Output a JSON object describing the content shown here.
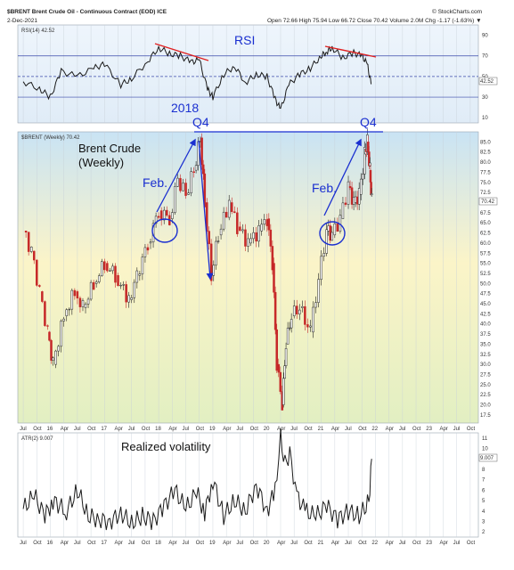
{
  "header": {
    "title": "$BRENT Brent Crude Oil - Continuous Contract (EOD) ICE",
    "date": "2-Dec-2021",
    "stats": "Open 72.66  High 75.94  Low 66.72  Close 70.42  Volume 2.0M  Chg -1.17 (-1.63%) ▼",
    "brand": "© StockCharts.com"
  },
  "annotations": {
    "rsi": "RSI",
    "year2018": "2018",
    "q4_left": "Q4",
    "q4_right": "Q4",
    "brent_line1": "Brent Crude",
    "brent_line2": "(Weekly)",
    "feb_left": "Feb.",
    "feb_right": "Feb.",
    "realized_volatility": "Realized volatility"
  },
  "chart_data": [
    {
      "type": "line",
      "panel": "rsi",
      "legend": "RSI(14) 42.52",
      "last_value": "42.52",
      "ylim": [
        5,
        100
      ],
      "yticks": [
        10,
        30,
        50,
        70,
        90
      ],
      "reference_lines": [
        30,
        50,
        70
      ],
      "x": [
        2015.5,
        2015.8,
        2016.0,
        2016.2,
        2016.5,
        2016.8,
        2017.0,
        2017.3,
        2017.5,
        2017.8,
        2018.0,
        2018.2,
        2018.4,
        2018.6,
        2018.75,
        2018.9,
        2019.0,
        2019.2,
        2019.4,
        2019.6,
        2019.8,
        2020.0,
        2020.15,
        2020.25,
        2020.4,
        2020.6,
        2020.8,
        2021.0,
        2021.1,
        2021.2,
        2021.4,
        2021.6,
        2021.75,
        2021.85,
        2021.92
      ],
      "values": [
        45,
        38,
        30,
        55,
        50,
        58,
        62,
        42,
        48,
        65,
        78,
        72,
        70,
        64,
        66,
        38,
        30,
        52,
        60,
        44,
        52,
        50,
        28,
        18,
        42,
        52,
        58,
        70,
        74,
        78,
        68,
        73,
        70,
        62,
        42.52
      ]
    },
    {
      "type": "candlestick",
      "panel": "price",
      "legend": "$BRENT (Weekly) 70.42",
      "last_value": "70.42",
      "ylim": [
        15.5,
        87.5
      ],
      "yticks": [
        17.5,
        20.0,
        22.5,
        25.0,
        27.5,
        30.0,
        32.5,
        35.0,
        37.5,
        40.0,
        42.5,
        45.0,
        47.5,
        50.0,
        52.5,
        55.0,
        57.5,
        60.0,
        62.5,
        65.0,
        67.5,
        70.0,
        72.5,
        75.0,
        77.5,
        80.0,
        82.5,
        85.0
      ],
      "x": [
        2015.5,
        2015.65,
        2015.8,
        2015.95,
        2016.05,
        2016.25,
        2016.45,
        2016.6,
        2016.8,
        2017.0,
        2017.2,
        2017.45,
        2017.6,
        2017.8,
        2018.0,
        2018.2,
        2018.35,
        2018.5,
        2018.65,
        2018.77,
        2018.85,
        2018.97,
        2019.1,
        2019.3,
        2019.45,
        2019.65,
        2019.85,
        2020.0,
        2020.1,
        2020.18,
        2020.28,
        2020.35,
        2020.45,
        2020.6,
        2020.8,
        2020.95,
        2021.1,
        2021.2,
        2021.35,
        2021.5,
        2021.6,
        2021.7,
        2021.8,
        2021.85,
        2021.9,
        2021.93
      ],
      "values": [
        63,
        58,
        48,
        38,
        30,
        42,
        48,
        44,
        50,
        55,
        52,
        46,
        52,
        60,
        68,
        66,
        76,
        72,
        78,
        86,
        70,
        52,
        62,
        70,
        64,
        60,
        63,
        66,
        55,
        30,
        20,
        35,
        42,
        44,
        38,
        51,
        63,
        62,
        66,
        74,
        70,
        72,
        82,
        85,
        78,
        70.42
      ]
    },
    {
      "type": "line",
      "panel": "atr",
      "legend": "ATR(2) 9.007",
      "last_value": "9.007",
      "ylim": [
        1.5,
        11.5
      ],
      "yticks": [
        2,
        3,
        4,
        5,
        6,
        7,
        8,
        9,
        10,
        11
      ],
      "x": [
        2015.5,
        2015.7,
        2015.9,
        2016.05,
        2016.3,
        2016.5,
        2016.7,
        2016.9,
        2017.1,
        2017.3,
        2017.5,
        2017.7,
        2017.9,
        2018.1,
        2018.3,
        2018.5,
        2018.7,
        2018.85,
        2019.0,
        2019.2,
        2019.4,
        2019.6,
        2019.8,
        2020.0,
        2020.15,
        2020.25,
        2020.33,
        2020.42,
        2020.55,
        2020.7,
        2020.9,
        2021.1,
        2021.3,
        2021.5,
        2021.7,
        2021.8,
        2021.88,
        2021.93
      ],
      "values": [
        4.2,
        5.5,
        3.5,
        5.0,
        4.0,
        6.0,
        3.5,
        3.2,
        3.0,
        3.8,
        2.8,
        3.5,
        3.0,
        4.5,
        6.0,
        4.2,
        5.8,
        3.8,
        7.0,
        3.5,
        5.0,
        4.0,
        6.5,
        4.0,
        6.0,
        11.0,
        8.5,
        9.5,
        5.5,
        4.0,
        3.5,
        4.5,
        3.2,
        4.0,
        3.5,
        4.2,
        5.0,
        9.007
      ]
    }
  ],
  "x_axis": {
    "labels": [
      "Jul",
      "Oct",
      "16",
      "Apr",
      "Jul",
      "Oct",
      "17",
      "Apr",
      "Jul",
      "Oct",
      "18",
      "Apr",
      "Jul",
      "Oct",
      "19",
      "Apr",
      "Jul",
      "Oct",
      "20",
      "Apr",
      "Jul",
      "Oct",
      "21",
      "Apr",
      "Jul",
      "Oct",
      "22",
      "Apr",
      "Jul",
      "Oct",
      "23",
      "Apr",
      "Jul",
      "Oct"
    ],
    "positions": [
      2015.5,
      2015.75,
      2016.0,
      2016.25,
      2016.5,
      2016.75,
      2017.0,
      2017.25,
      2017.5,
      2017.75,
      2018.0,
      2018.25,
      2018.5,
      2018.75,
      2019.0,
      2019.25,
      2019.5,
      2019.75,
      2020.0,
      2020.25,
      2020.5,
      2020.75,
      2021.0,
      2021.25,
      2021.5,
      2021.75,
      2022.0,
      2022.25,
      2022.5,
      2022.75,
      2023.0,
      2023.25,
      2023.5,
      2023.75
    ]
  },
  "colors": {
    "arrow": "#1a2fd0",
    "rsi_divergence": "#e02020",
    "q4_line": "#1a2fd0",
    "line": "#111111",
    "price_bg_top": "#c9e3f4",
    "price_bg_mid": "#fbf4c8",
    "price_bg_bottom": "#e2efc2",
    "rsi_bg": "#e9f2fb"
  }
}
